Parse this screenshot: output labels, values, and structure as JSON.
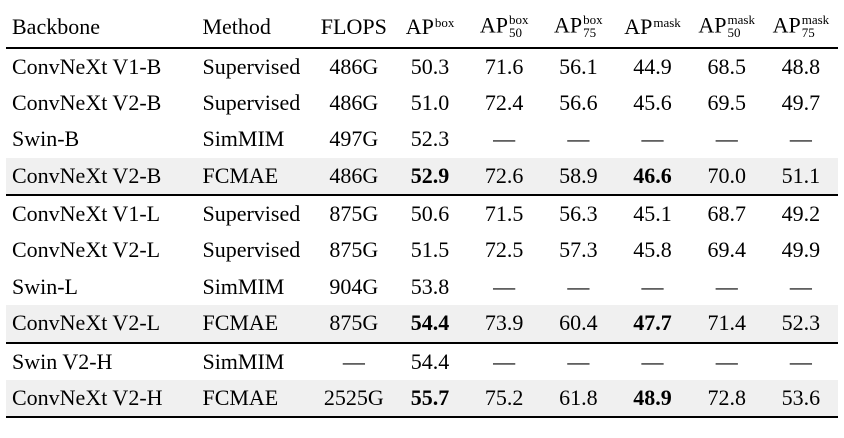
{
  "table": {
    "highlight_color": "#f0f0f0",
    "rule_color": "#000000",
    "columns": [
      {
        "label": "Backbone",
        "sup": "",
        "sub": "",
        "align": "left"
      },
      {
        "label": "Method",
        "sup": "",
        "sub": "",
        "align": "left"
      },
      {
        "label": "FLOPS",
        "sup": "",
        "sub": "",
        "align": "center"
      },
      {
        "label": "AP",
        "sup": "box",
        "sub": "",
        "align": "center"
      },
      {
        "label": "AP",
        "sup": "box",
        "sub": "50",
        "align": "center"
      },
      {
        "label": "AP",
        "sup": "box",
        "sub": "75",
        "align": "center"
      },
      {
        "label": "AP",
        "sup": "mask",
        "sub": "",
        "align": "center"
      },
      {
        "label": "AP",
        "sup": "mask",
        "sub": "50",
        "align": "center"
      },
      {
        "label": "AP",
        "sup": "mask",
        "sub": "75",
        "align": "center"
      }
    ],
    "groups": [
      {
        "rows": [
          {
            "cells": [
              "ConvNeXt V1-B",
              "Supervised",
              "486G",
              "50.3",
              "71.6",
              "56.1",
              "44.9",
              "68.5",
              "48.8"
            ],
            "highlight": false,
            "bold": []
          },
          {
            "cells": [
              "ConvNeXt V2-B",
              "Supervised",
              "486G",
              "51.0",
              "72.4",
              "56.6",
              "45.6",
              "69.5",
              "49.7"
            ],
            "highlight": false,
            "bold": []
          },
          {
            "cells": [
              "Swin-B",
              "SimMIM",
              "497G",
              "52.3",
              "—",
              "—",
              "—",
              "—",
              "—"
            ],
            "highlight": false,
            "bold": []
          },
          {
            "cells": [
              "ConvNeXt V2-B",
              "FCMAE",
              "486G",
              "52.9",
              "72.6",
              "58.9",
              "46.6",
              "70.0",
              "51.1"
            ],
            "highlight": true,
            "bold": [
              3,
              6
            ]
          }
        ]
      },
      {
        "rows": [
          {
            "cells": [
              "ConvNeXt V1-L",
              "Supervised",
              "875G",
              "50.6",
              "71.5",
              "56.3",
              "45.1",
              "68.7",
              "49.2"
            ],
            "highlight": false,
            "bold": []
          },
          {
            "cells": [
              "ConvNeXt V2-L",
              "Supervised",
              "875G",
              "51.5",
              "72.5",
              "57.3",
              "45.8",
              "69.4",
              "49.9"
            ],
            "highlight": false,
            "bold": []
          },
          {
            "cells": [
              "Swin-L",
              "SimMIM",
              "904G",
              "53.8",
              "—",
              "—",
              "—",
              "—",
              "—"
            ],
            "highlight": false,
            "bold": []
          },
          {
            "cells": [
              "ConvNeXt V2-L",
              "FCMAE",
              "875G",
              "54.4",
              "73.9",
              "60.4",
              "47.7",
              "71.4",
              "52.3"
            ],
            "highlight": true,
            "bold": [
              3,
              6
            ]
          }
        ]
      },
      {
        "rows": [
          {
            "cells": [
              "Swin V2-H",
              "SimMIM",
              "—",
              "54.4",
              "—",
              "—",
              "—",
              "—",
              "—"
            ],
            "highlight": false,
            "bold": []
          },
          {
            "cells": [
              "ConvNeXt V2-H",
              "FCMAE",
              "2525G",
              "55.7",
              "75.2",
              "61.8",
              "48.9",
              "72.8",
              "53.6"
            ],
            "highlight": true,
            "bold": [
              3,
              6
            ]
          }
        ]
      }
    ]
  }
}
